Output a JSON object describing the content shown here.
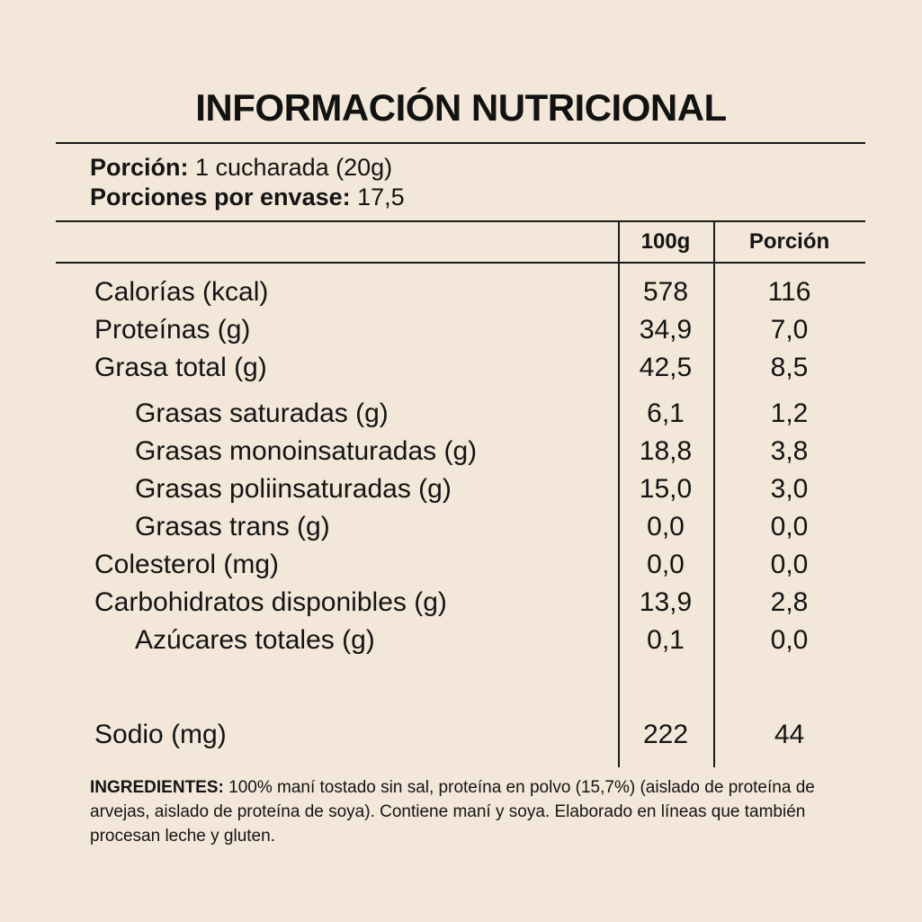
{
  "title": "INFORMACIÓN NUTRICIONAL",
  "serving": {
    "portion_label": "Porción:",
    "portion_value": " 1 cucharada (20g)",
    "per_container_label": "Porciones por envase:",
    "per_container_value": " 17,5"
  },
  "table": {
    "columns": [
      "100g",
      "Porción"
    ],
    "rows": [
      {
        "label": "Calorías (kcal)",
        "per100g": "578",
        "portion": "116",
        "indent": false
      },
      {
        "label": "Proteínas (g)",
        "per100g": "34,9",
        "portion": "7,0",
        "indent": false
      },
      {
        "label": "Grasa total (g)",
        "per100g": "42,5",
        "portion": "8,5",
        "indent": false
      },
      {
        "label": "Grasas saturadas (g)",
        "per100g": "6,1",
        "portion": "1,2",
        "indent": true
      },
      {
        "label": "Grasas monoinsaturadas (g)",
        "per100g": "18,8",
        "portion": "3,8",
        "indent": true
      },
      {
        "label": "Grasas poliinsaturadas (g)",
        "per100g": "15,0",
        "portion": "3,0",
        "indent": true
      },
      {
        "label": "Grasas trans (g)",
        "per100g": "0,0",
        "portion": "0,0",
        "indent": true
      },
      {
        "label": "Colesterol (mg)",
        "per100g": "0,0",
        "portion": "0,0",
        "indent": false
      },
      {
        "label": "Carbohidratos disponibles (g)",
        "per100g": "13,9",
        "portion": "2,8",
        "indent": false
      },
      {
        "label": "Azúcares totales (g)",
        "per100g": "0,1",
        "portion": "0,0",
        "indent": true
      },
      {
        "label": "Sodio (mg)",
        "per100g": "222",
        "portion": "44",
        "indent": false
      }
    ]
  },
  "ingredients": {
    "label": "INGREDIENTES:",
    "text": " 100% maní tostado sin sal, proteína en polvo (15,7%) (aislado de proteína de arvejas, aislado de proteína de soya). Contiene maní y soya. Elaborado en líneas que también procesan leche y gluten."
  },
  "colors": {
    "background": "#f2e7d8",
    "text": "#141414",
    "rule": "#1b1b1b"
  }
}
